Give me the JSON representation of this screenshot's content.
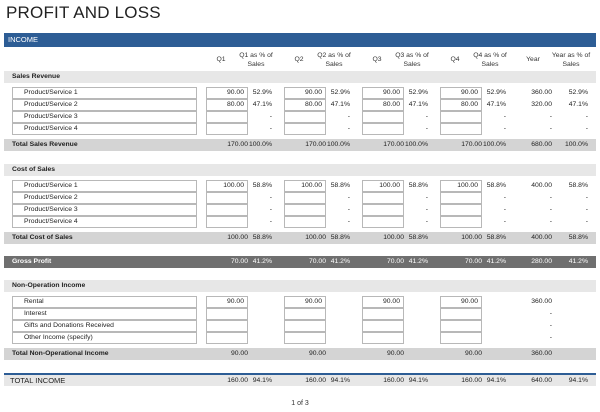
{
  "title": "PROFIT AND LOSS",
  "income_band": "INCOME",
  "headers": [
    "Q1",
    "Q1 as % of Sales",
    "Q2",
    "Q2 as % of Sales",
    "Q3",
    "Q3 as % of Sales",
    "Q4",
    "Q4 as % of Sales",
    "Year",
    "Year as % of Sales"
  ],
  "sales": {
    "title": "Sales Revenue",
    "rows": [
      {
        "label": "Product/Service 1",
        "q": [
          "90.00",
          "90.00",
          "90.00",
          "90.00"
        ],
        "p": [
          "52.9%",
          "52.9%",
          "52.9%",
          "52.9%"
        ],
        "year": "360.00",
        "yp": "52.9%"
      },
      {
        "label": "Product/Service 2",
        "q": [
          "80.00",
          "80.00",
          "80.00",
          "80.00"
        ],
        "p": [
          "47.1%",
          "47.1%",
          "47.1%",
          "47.1%"
        ],
        "year": "320.00",
        "yp": "47.1%"
      },
      {
        "label": "Product/Service 3",
        "q": [
          "",
          "",
          "",
          ""
        ],
        "p": [
          "-",
          "-",
          "-",
          "-"
        ],
        "year": "-",
        "yp": "-"
      },
      {
        "label": "Product/Service 4",
        "q": [
          "",
          "",
          "",
          ""
        ],
        "p": [
          "-",
          "-",
          "-",
          "-"
        ],
        "year": "-",
        "yp": "-"
      }
    ],
    "total": {
      "label": "Total Sales Revenue",
      "q": [
        "170.00",
        "170.00",
        "170.00",
        "170.00"
      ],
      "p": [
        "100.0%",
        "100.0%",
        "100.0%",
        "100.0%"
      ],
      "year": "680.00",
      "yp": "100.0%"
    }
  },
  "cost": {
    "title": "Cost of Sales",
    "rows": [
      {
        "label": "Product/Service 1",
        "q": [
          "100.00",
          "100.00",
          "100.00",
          "100.00"
        ],
        "p": [
          "58.8%",
          "58.8%",
          "58.8%",
          "58.8%"
        ],
        "year": "400.00",
        "yp": "58.8%"
      },
      {
        "label": "Product/Service 2",
        "q": [
          "",
          "",
          "",
          ""
        ],
        "p": [
          "-",
          "-",
          "-",
          "-"
        ],
        "year": "-",
        "yp": "-"
      },
      {
        "label": "Product/Service 3",
        "q": [
          "",
          "",
          "",
          ""
        ],
        "p": [
          "-",
          "-",
          "-",
          "-"
        ],
        "year": "-",
        "yp": "-"
      },
      {
        "label": "Product/Service 4",
        "q": [
          "",
          "",
          "",
          ""
        ],
        "p": [
          "-",
          "-",
          "-",
          "-"
        ],
        "year": "-",
        "yp": "-"
      }
    ],
    "total": {
      "label": "Total Cost of Sales",
      "q": [
        "100.00",
        "100.00",
        "100.00",
        "100.00"
      ],
      "p": [
        "58.8%",
        "58.8%",
        "58.8%",
        "58.8%"
      ],
      "year": "400.00",
      "yp": "58.8%"
    }
  },
  "gross": {
    "label": "Gross Profit",
    "q": [
      "70.00",
      "70.00",
      "70.00",
      "70.00"
    ],
    "p": [
      "41.2%",
      "41.2%",
      "41.2%",
      "41.2%"
    ],
    "year": "280.00",
    "yp": "41.2%"
  },
  "nonop": {
    "title": "Non-Operation Income",
    "rows": [
      {
        "label": "Rental",
        "q": [
          "90.00",
          "90.00",
          "90.00",
          "90.00"
        ],
        "p": [
          "",
          "",
          "",
          ""
        ],
        "year": "360.00",
        "yp": ""
      },
      {
        "label": "Interest",
        "q": [
          "",
          "",
          "",
          ""
        ],
        "p": [
          "",
          "",
          "",
          ""
        ],
        "year": "-",
        "yp": ""
      },
      {
        "label": "Gifts and Donations Received",
        "q": [
          "",
          "",
          "",
          ""
        ],
        "p": [
          "",
          "",
          "",
          ""
        ],
        "year": "-",
        "yp": ""
      },
      {
        "label": "Other Income (specify)",
        "q": [
          "",
          "",
          "",
          ""
        ],
        "p": [
          "",
          "",
          "",
          ""
        ],
        "year": "-",
        "yp": ""
      }
    ],
    "total": {
      "label": "Total Non-Operational Income",
      "q": [
        "90.00",
        "90.00",
        "90.00",
        "90.00"
      ],
      "p": [
        "",
        "",
        "",
        ""
      ],
      "year": "360.00",
      "yp": ""
    }
  },
  "total_income": {
    "label": "TOTAL INCOME",
    "q": [
      "160.00",
      "160.00",
      "160.00",
      "160.00"
    ],
    "p": [
      "94.1%",
      "94.1%",
      "94.1%",
      "94.1%"
    ],
    "year": "640.00",
    "yp": "94.1%"
  },
  "footer": "1 of 3"
}
